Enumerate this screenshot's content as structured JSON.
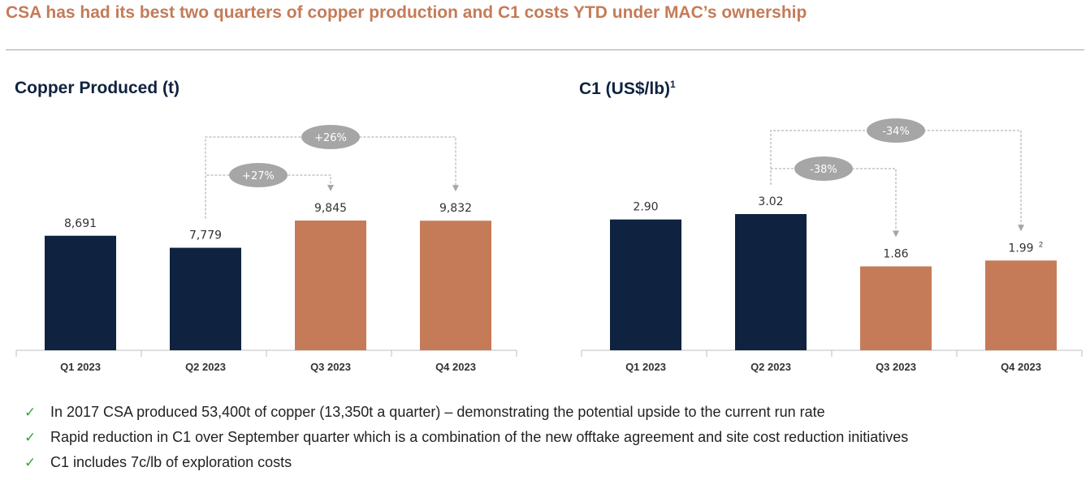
{
  "title": "CSA has had its best two quarters of copper production and C1 costs YTD under MAC’s ownership",
  "chart_data": [
    {
      "type": "bar",
      "title": "Copper Produced (t)",
      "title_sup": "",
      "categories": [
        "Q1 2023",
        "Q2 2023",
        "Q3 2023",
        "Q4 2023"
      ],
      "values": [
        8691,
        7779,
        9845,
        9832
      ],
      "data_labels": [
        "8,691",
        "7,779",
        "9,845",
        "9,832"
      ],
      "label_notes": [
        "",
        "",
        "",
        ""
      ],
      "bar_colors": [
        "#0f2340",
        "#0f2340",
        "#c57b58",
        "#c57b58"
      ],
      "ylim": [
        0,
        9845
      ],
      "annotations": [
        {
          "from": 1,
          "to": 2,
          "label": "+27%",
          "level": "inner"
        },
        {
          "from": 1,
          "to": 3,
          "label": "+26%",
          "level": "outer"
        }
      ]
    },
    {
      "type": "bar",
      "title": "C1 (US$/lb)",
      "title_sup": "1",
      "categories": [
        "Q1 2023",
        "Q2 2023",
        "Q3 2023",
        "Q4 2023"
      ],
      "values": [
        2.9,
        3.02,
        1.86,
        1.99
      ],
      "data_labels": [
        "2.90",
        "3.02",
        "1.86",
        "1.99"
      ],
      "label_notes": [
        "",
        "",
        "",
        "2"
      ],
      "bar_colors": [
        "#0f2340",
        "#0f2340",
        "#c57b58",
        "#c57b58"
      ],
      "ylim": [
        0,
        3.02
      ],
      "annotations": [
        {
          "from": 1,
          "to": 2,
          "label": "-38%",
          "level": "inner"
        },
        {
          "from": 1,
          "to": 3,
          "label": "-34%",
          "level": "outer"
        }
      ]
    }
  ],
  "bullets": [
    "In 2017 CSA produced 53,400t of copper (13,350t a quarter) – demonstrating the potential upside to the current run rate",
    "Rapid reduction in C1 over September quarter which is a combination of the new offtake agreement and site cost reduction initiatives",
    "C1 includes 7c/lb of exploration costs"
  ],
  "check_icon": "✓"
}
